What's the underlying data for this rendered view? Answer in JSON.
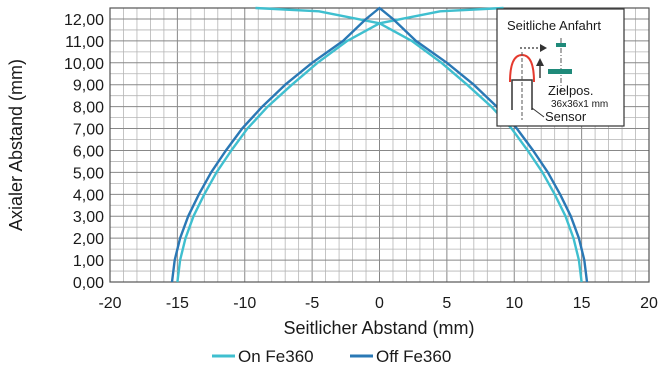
{
  "chart_data": {
    "type": "line",
    "xlabel": "Seitlicher Abstand (mm)",
    "ylabel": "Axialer Abstand (mm)",
    "xlim": [
      -20,
      20
    ],
    "ylim": [
      0,
      12.5
    ],
    "x_ticks": [
      "-20",
      "-15",
      "-10",
      "-5",
      "0",
      "5",
      "10",
      "15",
      "20"
    ],
    "y_ticks": [
      "0,00",
      "1,00",
      "2,00",
      "3,00",
      "4,00",
      "5,00",
      "6,00",
      "7,00",
      "8,00",
      "9,00",
      "10,00",
      "11,00",
      "12,00"
    ],
    "grid": true,
    "legend_position": "bottom",
    "series": [
      {
        "name": "On Fe360",
        "color": "#3fbfcf",
        "points": [
          [
            -15.0,
            0.0
          ],
          [
            -14.8,
            1.0
          ],
          [
            -14.4,
            2.0
          ],
          [
            -13.8,
            3.0
          ],
          [
            -13.0,
            4.0
          ],
          [
            -12.1,
            5.0
          ],
          [
            -11.0,
            6.0
          ],
          [
            -9.8,
            7.0
          ],
          [
            -8.3,
            8.0
          ],
          [
            -6.5,
            9.0
          ],
          [
            -4.6,
            10.0
          ],
          [
            -2.4,
            11.0
          ],
          [
            0.0,
            11.8
          ],
          [
            2.4,
            11.0
          ],
          [
            4.6,
            10.0
          ],
          [
            6.5,
            9.0
          ],
          [
            8.3,
            8.0
          ],
          [
            9.8,
            7.0
          ],
          [
            11.0,
            6.0
          ],
          [
            12.1,
            5.0
          ],
          [
            13.0,
            4.0
          ],
          [
            13.8,
            3.0
          ],
          [
            14.4,
            2.0
          ],
          [
            14.8,
            1.0
          ],
          [
            15.0,
            0.0
          ]
        ],
        "upper_branch": [
          [
            -9.2,
            12.5
          ],
          [
            -4.5,
            12.35
          ],
          [
            0.0,
            11.8
          ],
          [
            4.5,
            12.35
          ],
          [
            9.2,
            12.5
          ]
        ]
      },
      {
        "name": "Off Fe360",
        "color": "#2a78b5",
        "points": [
          [
            -15.4,
            0.0
          ],
          [
            -15.2,
            1.0
          ],
          [
            -14.8,
            2.0
          ],
          [
            -14.2,
            3.0
          ],
          [
            -13.4,
            4.0
          ],
          [
            -12.5,
            5.0
          ],
          [
            -11.4,
            6.0
          ],
          [
            -10.2,
            7.0
          ],
          [
            -8.7,
            8.0
          ],
          [
            -7.0,
            9.0
          ],
          [
            -5.0,
            10.0
          ],
          [
            -2.7,
            11.0
          ],
          [
            -1.0,
            12.0
          ],
          [
            0.0,
            12.5
          ],
          [
            1.0,
            12.0
          ],
          [
            2.7,
            11.0
          ],
          [
            5.0,
            10.0
          ],
          [
            7.0,
            9.0
          ],
          [
            8.7,
            8.0
          ],
          [
            10.2,
            7.0
          ],
          [
            11.4,
            6.0
          ],
          [
            12.5,
            5.0
          ],
          [
            13.4,
            4.0
          ],
          [
            14.2,
            3.0
          ],
          [
            14.8,
            2.0
          ],
          [
            15.2,
            1.0
          ],
          [
            15.4,
            0.0
          ]
        ]
      }
    ],
    "inset": {
      "title": "Seitliche Anfahrt",
      "target_label": "Zielpos.",
      "target_size": "36x36x1 mm",
      "sensor_label": "Sensor"
    }
  }
}
